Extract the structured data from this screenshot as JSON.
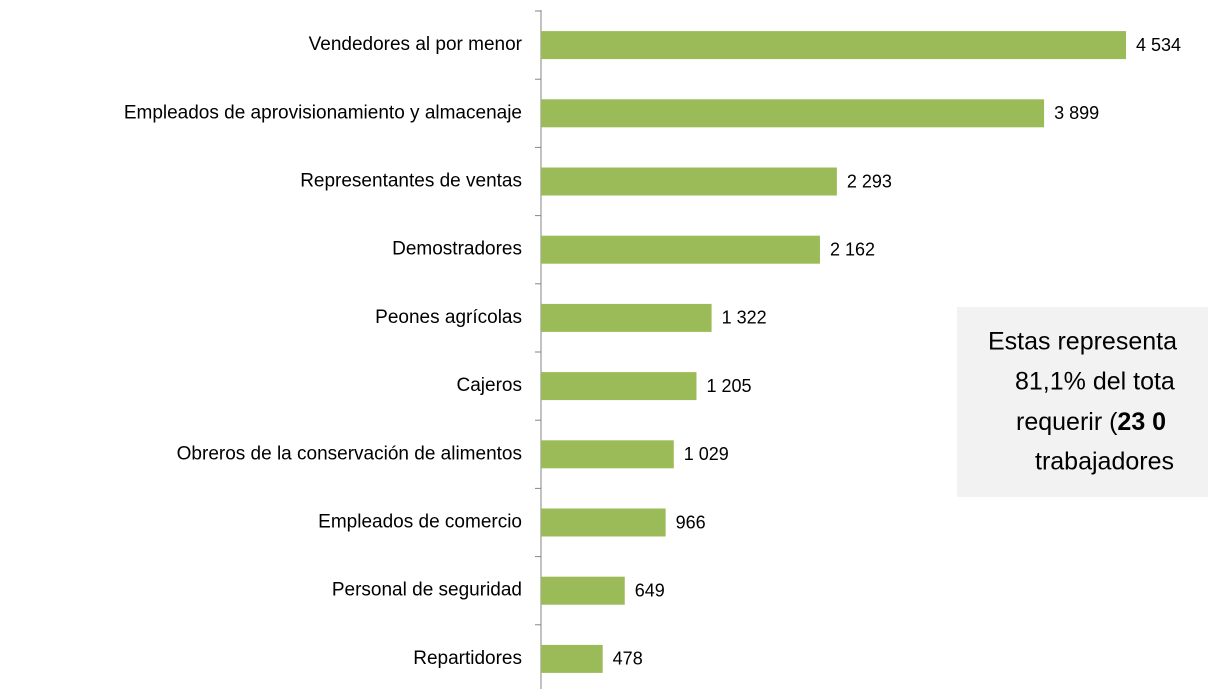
{
  "chart_data": {
    "type": "barh",
    "categories": [
      "Vendedores al por menor",
      "Empleados de aprovisionamiento  y almacenaje",
      "Representantes de ventas ",
      "Demostradores",
      "Peones agrícolas",
      "Cajeros",
      "Obreros de la conservación de alimentos",
      "Empleados de comercio",
      "Personal de seguridad",
      "Repartidores"
    ],
    "values": [
      4534,
      3899,
      2293,
      2162,
      1322,
      1205,
      1029,
      966,
      649,
      478
    ],
    "value_labels": [
      "4 534",
      "3 899",
      "2 293",
      "2 162",
      "1 322",
      "1 205",
      "1 029",
      "966",
      "649",
      "478"
    ],
    "color": "#9bbb59",
    "annotation": [
      [
        "Estas representa"
      ],
      [
        "81,1% del tota"
      ],
      [
        "requerir (",
        "23 0"
      ],
      [
        "trabajadores"
      ]
    ]
  }
}
